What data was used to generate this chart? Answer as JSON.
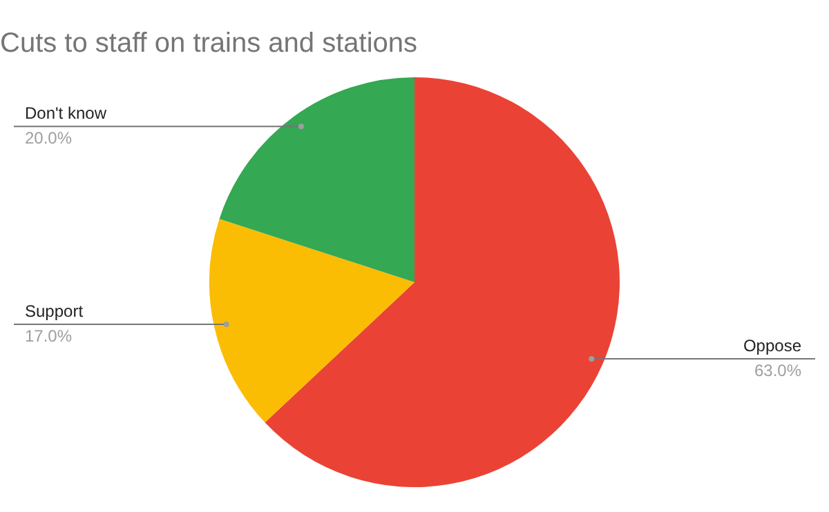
{
  "chart_data": {
    "type": "pie",
    "title": "Cuts to staff on trains and stations",
    "categories": [
      "Oppose",
      "Support",
      "Don't know"
    ],
    "values": [
      63,
      17,
      20
    ],
    "colors": [
      "#ea4335",
      "#fbbc04",
      "#34a853"
    ],
    "value_labels": [
      "63.0%",
      "17.0%",
      "20.0%"
    ],
    "legend": false
  }
}
